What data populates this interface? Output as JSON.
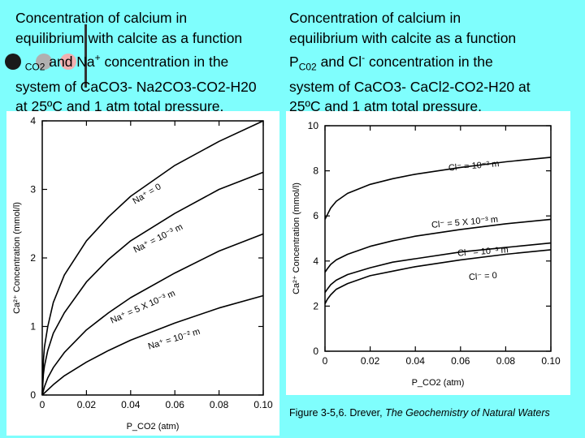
{
  "captions": {
    "left": {
      "line1": "Concentration of calcium in",
      "line2": "equilibrium with calcite as a function",
      "line3_a": "P",
      "line3_sub": "CO2",
      "line3_b": " and Na",
      "line3_sup": "+",
      "line3_c": " concentration in the",
      "line4": "system of CaCO3- Na2CO3-CO2-H20",
      "line5": "at 25ºC and 1 atm total pressure."
    },
    "right": {
      "line1": "Concentration of calcium in",
      "line2": "equilibrium with calcite as a function",
      "line3_a": "P",
      "line3_sub": "C02",
      "line3_b": " and Cl",
      "line3_sup": "-",
      "line3_c": " concentration in the",
      "line4": "system of CaCO3- CaCl2-CO2-H20 at",
      "line5": "25ºC and 1 atm total pressure."
    }
  },
  "credit": {
    "prefix": "Figure 3-5,6. Drever, ",
    "book": "The Geochemistry of Natural Waters"
  },
  "decorations": {
    "dot_dark": "#1a1a1a",
    "dot_grey": "#b0b0b0",
    "dot_pink": "#f0b0b0",
    "bar": "#333333"
  },
  "chart_data": [
    {
      "type": "line",
      "ylabel": "Ca²⁺ Concentration (mmol/l)",
      "xlabel": "P_CO2 (atm)",
      "xlim": [
        0,
        0.1
      ],
      "ylim": [
        0,
        4
      ],
      "y_ticks": [
        "0",
        "1",
        "2",
        "3",
        "4"
      ],
      "x_ticks": [
        "0",
        "0.02",
        "0.04",
        "0.06",
        "0.08",
        "0.10"
      ],
      "series": [
        {
          "name": "Na⁺ = 0",
          "x": [
            0,
            0.0005,
            0.001,
            0.0025,
            0.005,
            0.01,
            0.02,
            0.03,
            0.04,
            0.06,
            0.08,
            0.1
          ],
          "values": [
            0,
            0.5,
            0.7,
            1.0,
            1.35,
            1.75,
            2.25,
            2.6,
            2.9,
            3.35,
            3.7,
            4.0
          ]
        },
        {
          "name": "Na⁺ = 10⁻³ m",
          "x": [
            0,
            0.0005,
            0.001,
            0.0025,
            0.005,
            0.01,
            0.02,
            0.03,
            0.04,
            0.06,
            0.08,
            0.1
          ],
          "values": [
            0,
            0.3,
            0.42,
            0.65,
            0.9,
            1.2,
            1.65,
            1.98,
            2.25,
            2.65,
            3.0,
            3.25
          ]
        },
        {
          "name": "Na⁺ = 5 X 10⁻³ m",
          "x": [
            0,
            0.001,
            0.0025,
            0.005,
            0.01,
            0.02,
            0.03,
            0.04,
            0.06,
            0.08,
            0.1
          ],
          "values": [
            0,
            0.12,
            0.25,
            0.4,
            0.62,
            0.95,
            1.2,
            1.42,
            1.78,
            2.1,
            2.35
          ]
        },
        {
          "name": "Na⁺ = 10⁻² m",
          "x": [
            0,
            0.005,
            0.01,
            0.02,
            0.03,
            0.04,
            0.06,
            0.08,
            0.1
          ],
          "values": [
            0,
            0.15,
            0.28,
            0.48,
            0.65,
            0.8,
            1.05,
            1.27,
            1.45
          ]
        }
      ]
    },
    {
      "type": "line",
      "ylabel": "Ca²⁺ Concentration (mmol/l)",
      "xlabel": "P_CO2 (atm)",
      "xlim": [
        0,
        0.1
      ],
      "ylim": [
        0,
        10
      ],
      "y_ticks": [
        "0",
        "2",
        "4",
        "6",
        "8",
        "10"
      ],
      "x_ticks": [
        "0",
        "0.02",
        "0.04",
        "0.06",
        "0.08",
        "0.10"
      ],
      "series": [
        {
          "name": "Cl⁻ = 10⁻² m",
          "x": [
            0,
            0.001,
            0.0025,
            0.005,
            0.01,
            0.02,
            0.03,
            0.04,
            0.06,
            0.08,
            0.1
          ],
          "values": [
            5.85,
            6.05,
            6.35,
            6.65,
            7.0,
            7.4,
            7.65,
            7.85,
            8.15,
            8.4,
            8.6
          ]
        },
        {
          "name": "Cl⁻ = 5 X 10⁻³ m",
          "x": [
            0,
            0.001,
            0.0025,
            0.005,
            0.01,
            0.02,
            0.03,
            0.04,
            0.06,
            0.08,
            0.1
          ],
          "values": [
            3.5,
            3.65,
            3.85,
            4.05,
            4.3,
            4.65,
            4.9,
            5.1,
            5.4,
            5.65,
            5.85
          ]
        },
        {
          "name": "Cl⁻ = 10⁻³ m",
          "x": [
            0,
            0.001,
            0.0025,
            0.005,
            0.01,
            0.02,
            0.03,
            0.04,
            0.06,
            0.08,
            0.1
          ],
          "values": [
            2.6,
            2.75,
            2.95,
            3.15,
            3.4,
            3.7,
            3.95,
            4.1,
            4.4,
            4.6,
            4.8
          ]
        },
        {
          "name": "Cl⁻ = 0",
          "x": [
            0,
            0.001,
            0.0025,
            0.005,
            0.01,
            0.02,
            0.03,
            0.04,
            0.06,
            0.08,
            0.1
          ],
          "values": [
            2.1,
            2.3,
            2.5,
            2.75,
            3.0,
            3.35,
            3.55,
            3.75,
            4.05,
            4.3,
            4.5
          ]
        }
      ]
    }
  ]
}
